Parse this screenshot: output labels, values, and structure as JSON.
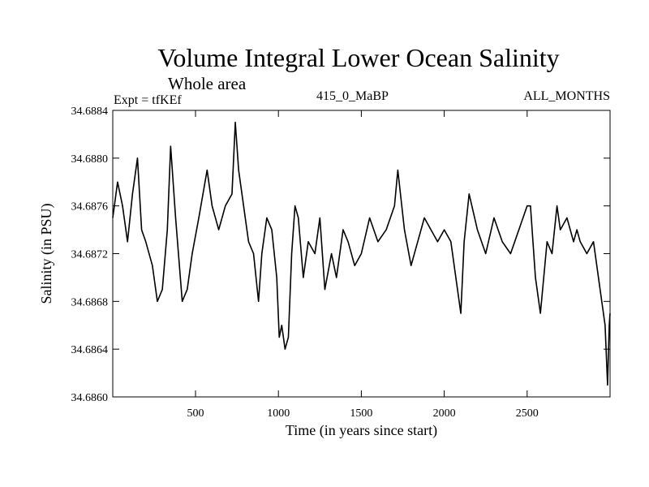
{
  "header": {
    "title": "Volume Integral Lower Ocean Salinity",
    "subtitle": "Whole area",
    "expt": "Expt = tfKEf",
    "run": "415_0_MaBP",
    "months": "ALL_MONTHS"
  },
  "chart_data": {
    "type": "line",
    "xlabel": "Time (in years since start)",
    "ylabel": "Salinity (in PSU)",
    "xlim": [
      1,
      3000
    ],
    "ylim": [
      34.686,
      34.6884
    ],
    "x_ticks": [
      500,
      1000,
      1500,
      2000,
      2500
    ],
    "y_ticks": [
      "34.6860",
      "34.6864",
      "34.6868",
      "34.6872",
      "34.6876",
      "34.6880",
      "34.6884"
    ],
    "grid": false,
    "series": [
      {
        "x": [
          1,
          30,
          60,
          90,
          120,
          150,
          175,
          200,
          240,
          270,
          300,
          330,
          350,
          380,
          420,
          450,
          480,
          520,
          570,
          600,
          640,
          680,
          720,
          740,
          760,
          790,
          820,
          850,
          880,
          900,
          930,
          960,
          990,
          1005,
          1020,
          1040,
          1060,
          1080,
          1100,
          1120,
          1150,
          1180,
          1220,
          1250,
          1280,
          1320,
          1350,
          1390,
          1420,
          1460,
          1500,
          1550,
          1600,
          1650,
          1700,
          1720,
          1760,
          1800,
          1840,
          1880,
          1920,
          1960,
          2000,
          2040,
          2080,
          2100,
          2120,
          2150,
          2200,
          2250,
          2300,
          2350,
          2400,
          2450,
          2500,
          2520,
          2550,
          2580,
          2620,
          2650,
          2680,
          2700,
          2740,
          2780,
          2800,
          2820,
          2860,
          2900,
          2930,
          2950,
          2970,
          2985,
          2995,
          3000
        ],
        "y": [
          34.6875,
          34.6878,
          34.6876,
          34.6873,
          34.6877,
          34.688,
          34.6874,
          34.6873,
          34.6871,
          34.6868,
          34.6869,
          34.6874,
          34.6881,
          34.6875,
          34.6868,
          34.6869,
          34.6872,
          34.6875,
          34.6879,
          34.6876,
          34.6874,
          34.6876,
          34.6877,
          34.6883,
          34.6879,
          34.6876,
          34.6873,
          34.6872,
          34.6868,
          34.6872,
          34.6875,
          34.6874,
          34.687,
          34.6865,
          34.6866,
          34.6864,
          34.6865,
          34.6872,
          34.6876,
          34.6875,
          34.687,
          34.6873,
          34.6872,
          34.6875,
          34.6869,
          34.6872,
          34.687,
          34.6874,
          34.6873,
          34.6871,
          34.6872,
          34.6875,
          34.6873,
          34.6874,
          34.6876,
          34.6879,
          34.6874,
          34.6871,
          34.6873,
          34.6875,
          34.6874,
          34.6873,
          34.6874,
          34.6873,
          34.6869,
          34.6867,
          34.6873,
          34.6877,
          34.6874,
          34.6872,
          34.6875,
          34.6873,
          34.6872,
          34.6874,
          34.6876,
          34.6876,
          34.687,
          34.6867,
          34.6873,
          34.6872,
          34.6876,
          34.6874,
          34.6875,
          34.6873,
          34.6874,
          34.6873,
          34.6872,
          34.6873,
          34.687,
          34.6868,
          34.6866,
          34.6861,
          34.6866,
          34.6867
        ]
      }
    ]
  }
}
